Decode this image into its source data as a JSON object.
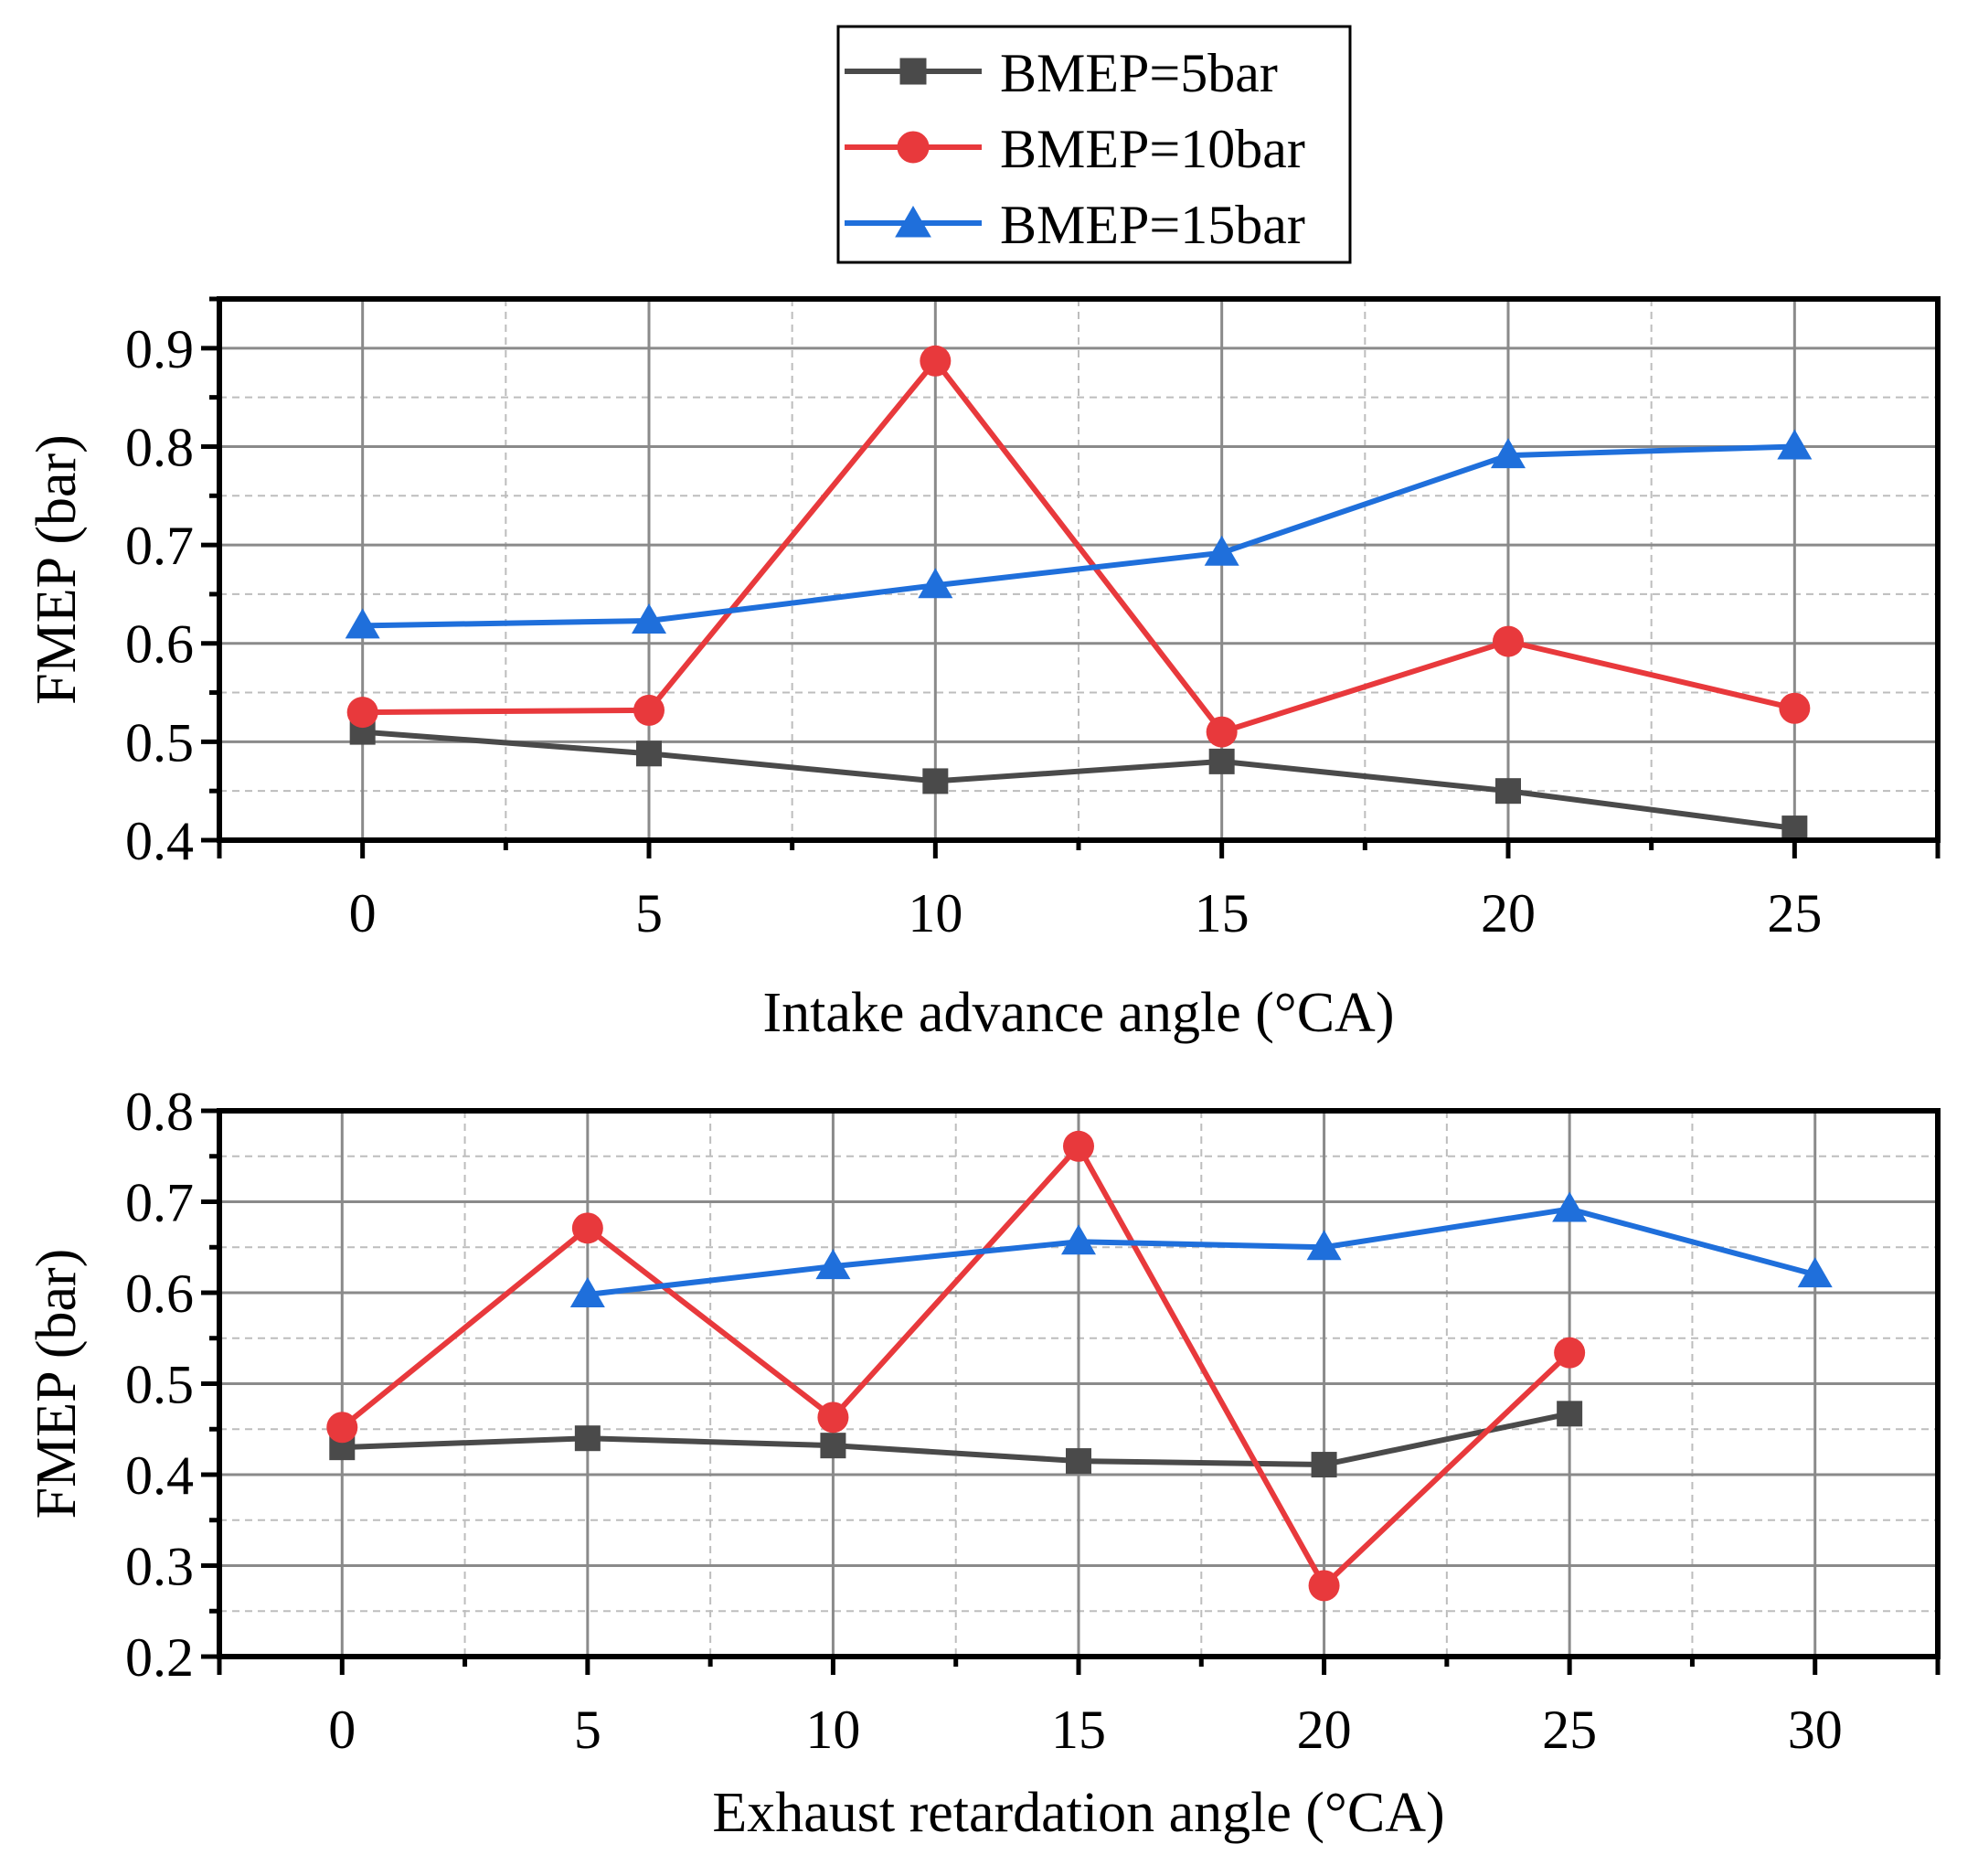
{
  "legend": [
    {
      "label": "BMEP=5bar",
      "color": "#4a4a4a",
      "marker": "square"
    },
    {
      "label": "BMEP=10bar",
      "color": "#e8393c",
      "marker": "circle"
    },
    {
      "label": "BMEP=15bar",
      "color": "#1f6fdb",
      "marker": "triangle"
    }
  ],
  "chart_data": [
    {
      "type": "line",
      "title": "",
      "xlabel": "Intake advance angle (°CA)",
      "ylabel": "FMEP (bar)",
      "xlim": [
        -2.5,
        27.5
      ],
      "ylim": [
        0.4,
        0.95
      ],
      "xticks": [
        0,
        5,
        10,
        15,
        20,
        25
      ],
      "xtick_labels": [
        "0",
        "5",
        "10",
        "15",
        "20",
        "25"
      ],
      "yticks": [
        0.4,
        0.5,
        0.6,
        0.7,
        0.8,
        0.9
      ],
      "ytick_labels": [
        "0.4",
        "0.5",
        "0.6",
        "0.7",
        "0.8",
        "0.9"
      ],
      "grid": true,
      "series": [
        {
          "name": "BMEP=5bar",
          "x": [
            0,
            5,
            10,
            15,
            20,
            25
          ],
          "values": [
            0.51,
            0.488,
            0.46,
            0.48,
            0.45,
            0.412
          ]
        },
        {
          "name": "BMEP=10bar",
          "x": [
            0,
            5,
            10,
            15,
            20,
            25
          ],
          "values": [
            0.53,
            0.532,
            0.887,
            0.51,
            0.602,
            0.534
          ]
        },
        {
          "name": "BMEP=15bar",
          "x": [
            0,
            5,
            10,
            15,
            20,
            25
          ],
          "values": [
            0.618,
            0.623,
            0.659,
            0.692,
            0.791,
            0.8
          ]
        }
      ]
    },
    {
      "type": "line",
      "title": "",
      "xlabel": "Exhaust retardation angle (°CA)",
      "ylabel": "FMEP (bar)",
      "xlim": [
        -2.5,
        32.5
      ],
      "ylim": [
        0.2,
        0.8
      ],
      "xticks": [
        0,
        5,
        10,
        15,
        20,
        25,
        30
      ],
      "xtick_labels": [
        "0",
        "5",
        "10",
        "15",
        "20",
        "25",
        "30"
      ],
      "yticks": [
        0.2,
        0.3,
        0.4,
        0.5,
        0.6,
        0.7,
        0.8
      ],
      "ytick_labels": [
        "0.2",
        "0.3",
        "0.4",
        "0.5",
        "0.6",
        "0.7",
        "0.8"
      ],
      "grid": true,
      "series": [
        {
          "name": "BMEP=5bar",
          "x": [
            0,
            5,
            10,
            15,
            20,
            25
          ],
          "values": [
            0.43,
            0.44,
            0.432,
            0.415,
            0.411,
            0.467
          ]
        },
        {
          "name": "BMEP=10bar",
          "x": [
            0,
            5,
            10,
            15,
            20,
            25
          ],
          "values": [
            0.452,
            0.671,
            0.463,
            0.761,
            0.278,
            0.534
          ]
        },
        {
          "name": "BMEP=15bar",
          "x": [
            5,
            10,
            15,
            20,
            25,
            30
          ],
          "values": [
            0.598,
            0.629,
            0.656,
            0.65,
            0.692,
            0.62
          ]
        }
      ]
    }
  ]
}
